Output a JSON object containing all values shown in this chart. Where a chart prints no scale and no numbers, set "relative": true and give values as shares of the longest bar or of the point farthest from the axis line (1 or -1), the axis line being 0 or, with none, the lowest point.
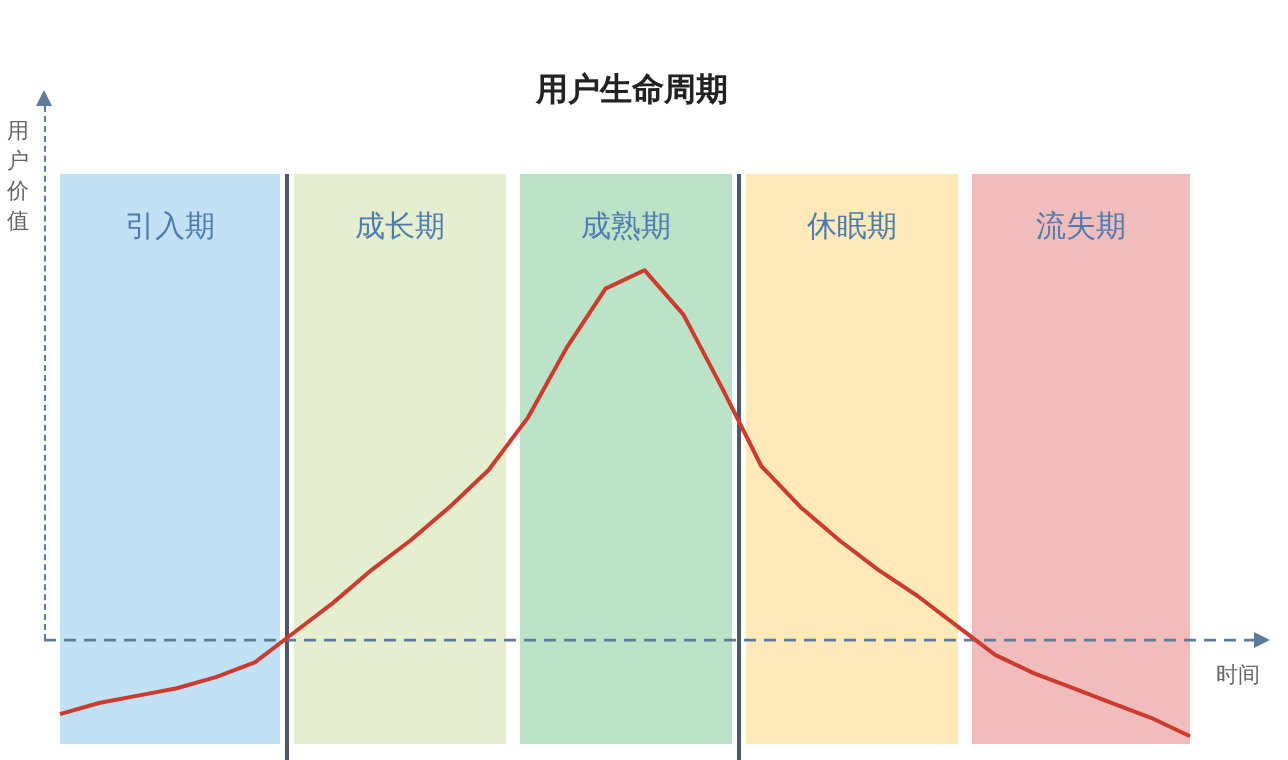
{
  "chart_data": {
    "type": "line",
    "title": "用户生命周期",
    "xlabel": "时间",
    "ylabel": "用户价值",
    "relative": true,
    "categories": [
      null,
      null,
      null,
      null,
      null,
      null,
      null,
      null,
      null,
      null,
      null,
      null,
      null,
      null,
      null,
      null,
      null,
      null,
      null,
      null,
      null,
      null,
      null,
      null,
      null,
      null,
      null,
      null,
      null,
      null
    ],
    "series": [
      {
        "color": "#cc3b2e",
        "values": [
          -0.2,
          -0.17,
          -0.15,
          -0.13,
          -0.1,
          -0.06,
          0.02,
          0.1,
          0.19,
          0.27,
          0.36,
          0.46,
          0.6,
          0.79,
          0.95,
          1,
          0.88,
          0.68,
          0.47,
          0.36,
          0.27,
          0.19,
          0.12,
          0.04,
          -0.04,
          -0.09,
          -0.13,
          -0.17,
          -0.21,
          -0.26
        ]
      }
    ],
    "annotations": [
      "引入期",
      "成长期",
      "成熟期",
      "休眠期",
      "流失期"
    ],
    "ref_lines": [
      {
        "axis": "y",
        "value": 0,
        "color": "#5b7c9c",
        "line_style": "dashed"
      }
    ]
  }
}
